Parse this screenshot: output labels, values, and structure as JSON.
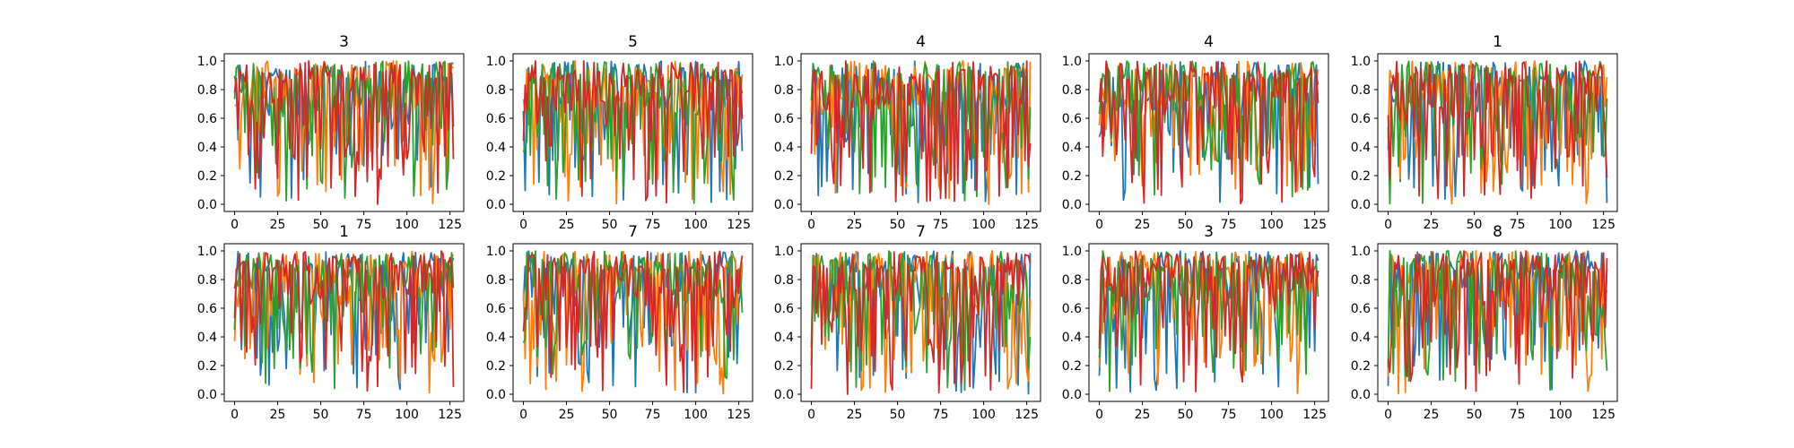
{
  "figure": {
    "background": "#ffffff",
    "series_colors": [
      "#1f77b4",
      "#ff7f0e",
      "#2ca02c",
      "#d62728"
    ]
  },
  "chart_data": [
    {
      "type": "line",
      "title": "3",
      "xlim": [
        -6,
        133
      ],
      "ylim": [
        -0.05,
        1.05
      ],
      "xticks": [
        0,
        25,
        50,
        75,
        100,
        125
      ],
      "yticks": [
        0.0,
        0.2,
        0.4,
        0.6,
        0.8,
        1.0
      ],
      "n_points": 128,
      "series": [
        {
          "values": []
        },
        {
          "values": []
        },
        {
          "values": []
        },
        {
          "values": []
        }
      ]
    },
    {
      "type": "line",
      "title": "5",
      "xlim": [
        -6,
        133
      ],
      "ylim": [
        -0.05,
        1.05
      ],
      "xticks": [
        0,
        25,
        50,
        75,
        100,
        125
      ],
      "yticks": [
        0.0,
        0.2,
        0.4,
        0.6,
        0.8,
        1.0
      ],
      "n_points": 128,
      "series": [
        {
          "values": []
        },
        {
          "values": []
        },
        {
          "values": []
        },
        {
          "values": []
        }
      ]
    },
    {
      "type": "line",
      "title": "4",
      "xlim": [
        -6,
        133
      ],
      "ylim": [
        -0.05,
        1.05
      ],
      "xticks": [
        0,
        25,
        50,
        75,
        100,
        125
      ],
      "yticks": [
        0.0,
        0.2,
        0.4,
        0.6,
        0.8,
        1.0
      ],
      "n_points": 128,
      "series": [
        {
          "values": []
        },
        {
          "values": []
        },
        {
          "values": []
        },
        {
          "values": []
        }
      ]
    },
    {
      "type": "line",
      "title": "4",
      "xlim": [
        -6,
        133
      ],
      "ylim": [
        -0.05,
        1.05
      ],
      "xticks": [
        0,
        25,
        50,
        75,
        100,
        125
      ],
      "yticks": [
        0.0,
        0.2,
        0.4,
        0.6,
        0.8,
        1.0
      ],
      "n_points": 128,
      "series": [
        {
          "values": []
        },
        {
          "values": []
        },
        {
          "values": []
        },
        {
          "values": []
        }
      ]
    },
    {
      "type": "line",
      "title": "1",
      "xlim": [
        -6,
        133
      ],
      "ylim": [
        -0.05,
        1.05
      ],
      "xticks": [
        0,
        25,
        50,
        75,
        100,
        125
      ],
      "yticks": [
        0.0,
        0.2,
        0.4,
        0.6,
        0.8,
        1.0
      ],
      "n_points": 128,
      "series": [
        {
          "values": []
        },
        {
          "values": []
        },
        {
          "values": []
        },
        {
          "values": []
        }
      ]
    },
    {
      "type": "line",
      "title": "1",
      "xlim": [
        -6,
        133
      ],
      "ylim": [
        -0.05,
        1.05
      ],
      "xticks": [
        0,
        25,
        50,
        75,
        100,
        125
      ],
      "yticks": [
        0.0,
        0.2,
        0.4,
        0.6,
        0.8,
        1.0
      ],
      "n_points": 128,
      "series": [
        {
          "values": []
        },
        {
          "values": []
        },
        {
          "values": []
        },
        {
          "values": []
        }
      ]
    },
    {
      "type": "line",
      "title": "7",
      "xlim": [
        -6,
        133
      ],
      "ylim": [
        -0.05,
        1.05
      ],
      "xticks": [
        0,
        25,
        50,
        75,
        100,
        125
      ],
      "yticks": [
        0.0,
        0.2,
        0.4,
        0.6,
        0.8,
        1.0
      ],
      "n_points": 128,
      "series": [
        {
          "values": []
        },
        {
          "values": []
        },
        {
          "values": []
        },
        {
          "values": []
        }
      ]
    },
    {
      "type": "line",
      "title": "7",
      "xlim": [
        -6,
        133
      ],
      "ylim": [
        -0.05,
        1.05
      ],
      "xticks": [
        0,
        25,
        50,
        75,
        100,
        125
      ],
      "yticks": [
        0.0,
        0.2,
        0.4,
        0.6,
        0.8,
        1.0
      ],
      "n_points": 128,
      "series": [
        {
          "values": []
        },
        {
          "values": []
        },
        {
          "values": []
        },
        {
          "values": []
        }
      ]
    },
    {
      "type": "line",
      "title": "3",
      "xlim": [
        -6,
        133
      ],
      "ylim": [
        -0.05,
        1.05
      ],
      "xticks": [
        0,
        25,
        50,
        75,
        100,
        125
      ],
      "yticks": [
        0.0,
        0.2,
        0.4,
        0.6,
        0.8,
        1.0
      ],
      "n_points": 128,
      "series": [
        {
          "values": []
        },
        {
          "values": []
        },
        {
          "values": []
        },
        {
          "values": []
        }
      ]
    },
    {
      "type": "line",
      "title": "8",
      "xlim": [
        -6,
        133
      ],
      "ylim": [
        -0.05,
        1.05
      ],
      "xticks": [
        0,
        25,
        50,
        75,
        100,
        125
      ],
      "yticks": [
        0.0,
        0.2,
        0.4,
        0.6,
        0.8,
        1.0
      ],
      "n_points": 128,
      "series": [
        {
          "values": []
        },
        {
          "values": []
        },
        {
          "values": []
        },
        {
          "values": []
        }
      ]
    }
  ]
}
